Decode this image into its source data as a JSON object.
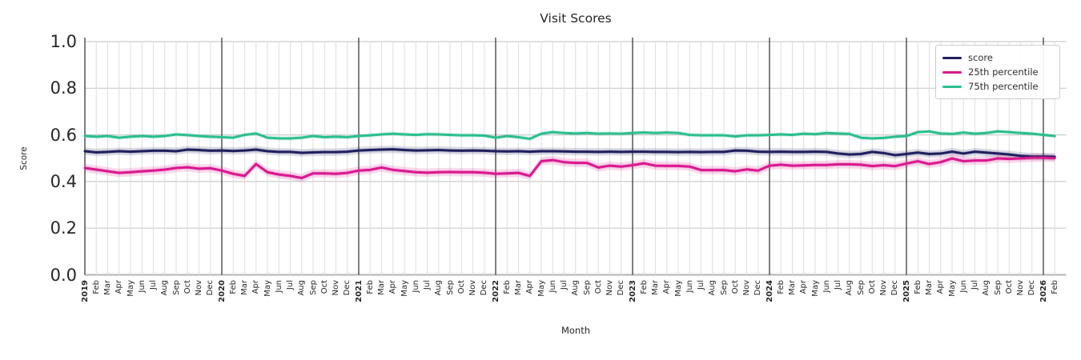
{
  "title": "Visit Scores",
  "legend": {
    "items": [
      {
        "label": "score",
        "color": "#20205e"
      },
      {
        "label": "25th percentile",
        "color": "#d9188f"
      },
      {
        "label": "75th percentile",
        "color": "#2cbe8c"
      }
    ]
  },
  "chart_data": {
    "type": "line",
    "title": "Visit Scores",
    "xlabel": "Month",
    "ylabel": "Score",
    "ylim": [
      0.0,
      1.0
    ],
    "yticks": [
      0.0,
      0.2,
      0.4,
      0.6,
      0.8,
      1.0
    ],
    "grid": true,
    "legend_position": "upper right",
    "x_tick_labels": [
      "2019",
      "Feb",
      "Mar",
      "Apr",
      "May",
      "Jun",
      "Jul",
      "Aug",
      "Sep",
      "Oct",
      "Nov",
      "Dec",
      "2020",
      "Feb",
      "Mar",
      "Apr",
      "May",
      "Jun",
      "Jul",
      "Aug",
      "Sep",
      "Oct",
      "Nov",
      "Dec",
      "2021",
      "Feb",
      "Mar",
      "Apr",
      "May",
      "Jun",
      "Jul",
      "Aug",
      "Sep",
      "Oct",
      "Nov",
      "Dec",
      "2022",
      "Feb",
      "Mar",
      "Apr",
      "May",
      "Jun",
      "Jul",
      "Aug",
      "Sep",
      "Oct",
      "Nov",
      "Dec",
      "2023",
      "Feb",
      "Mar",
      "Apr",
      "May",
      "Jun",
      "Jul",
      "Aug",
      "Sep",
      "Oct",
      "Nov",
      "Dec",
      "2024",
      "Feb",
      "Mar",
      "Apr",
      "May",
      "Jun",
      "Jul",
      "Aug",
      "Sep",
      "Oct",
      "Nov",
      "Dec",
      "2025",
      "Feb",
      "Mar",
      "Apr",
      "May",
      "Jun",
      "Jul",
      "Aug",
      "Sep",
      "Oct",
      "Nov",
      "Dec",
      "2026",
      "Feb"
    ],
    "year_line_indices": [
      0,
      12,
      24,
      36,
      48,
      60,
      72,
      84
    ],
    "series": [
      {
        "name": "score",
        "color": "#20205e",
        "band_halfwidth": 0.016,
        "values": [
          0.53,
          0.525,
          0.527,
          0.53,
          0.528,
          0.53,
          0.532,
          0.532,
          0.53,
          0.537,
          0.535,
          0.532,
          0.533,
          0.531,
          0.533,
          0.537,
          0.53,
          0.527,
          0.527,
          0.523,
          0.525,
          0.526,
          0.526,
          0.528,
          0.533,
          0.535,
          0.537,
          0.538,
          0.535,
          0.533,
          0.534,
          0.535,
          0.533,
          0.532,
          0.533,
          0.532,
          0.53,
          0.529,
          0.53,
          0.528,
          0.53,
          0.53,
          0.529,
          0.528,
          0.528,
          0.527,
          0.528,
          0.527,
          0.528,
          0.528,
          0.527,
          0.527,
          0.526,
          0.527,
          0.526,
          0.527,
          0.527,
          0.533,
          0.532,
          0.528,
          0.527,
          0.528,
          0.527,
          0.527,
          0.528,
          0.527,
          0.52,
          0.516,
          0.518,
          0.527,
          0.522,
          0.513,
          0.518,
          0.524,
          0.518,
          0.52,
          0.528,
          0.52,
          0.528,
          0.524,
          0.52,
          0.516,
          0.51,
          0.507,
          0.507,
          0.506
        ]
      },
      {
        "name": "25th percentile",
        "color": "#d9188f",
        "band_halfwidth": 0.018,
        "values": [
          0.458,
          0.451,
          0.444,
          0.437,
          0.44,
          0.444,
          0.447,
          0.451,
          0.458,
          0.461,
          0.455,
          0.457,
          0.447,
          0.433,
          0.424,
          0.475,
          0.44,
          0.43,
          0.424,
          0.415,
          0.435,
          0.435,
          0.433,
          0.437,
          0.447,
          0.45,
          0.46,
          0.45,
          0.445,
          0.44,
          0.438,
          0.44,
          0.441,
          0.44,
          0.44,
          0.438,
          0.433,
          0.435,
          0.437,
          0.424,
          0.487,
          0.492,
          0.483,
          0.48,
          0.48,
          0.46,
          0.468,
          0.464,
          0.47,
          0.478,
          0.468,
          0.467,
          0.467,
          0.464,
          0.449,
          0.449,
          0.449,
          0.444,
          0.452,
          0.447,
          0.468,
          0.472,
          0.468,
          0.469,
          0.471,
          0.471,
          0.474,
          0.474,
          0.472,
          0.466,
          0.47,
          0.466,
          0.477,
          0.487,
          0.475,
          0.483,
          0.499,
          0.487,
          0.49,
          0.49,
          0.499,
          0.497,
          0.499,
          0.502,
          0.502,
          0.5
        ]
      },
      {
        "name": "75th percentile",
        "color": "#2cbe8c",
        "band_halfwidth": 0.009,
        "values": [
          0.595,
          0.592,
          0.595,
          0.588,
          0.592,
          0.595,
          0.592,
          0.595,
          0.602,
          0.599,
          0.595,
          0.592,
          0.59,
          0.588,
          0.6,
          0.606,
          0.588,
          0.585,
          0.585,
          0.588,
          0.595,
          0.59,
          0.592,
          0.59,
          0.595,
          0.598,
          0.602,
          0.605,
          0.602,
          0.6,
          0.603,
          0.602,
          0.6,
          0.598,
          0.598,
          0.597,
          0.588,
          0.595,
          0.59,
          0.583,
          0.605,
          0.612,
          0.608,
          0.606,
          0.608,
          0.605,
          0.606,
          0.605,
          0.608,
          0.61,
          0.608,
          0.61,
          0.608,
          0.6,
          0.598,
          0.598,
          0.598,
          0.593,
          0.598,
          0.598,
          0.6,
          0.602,
          0.6,
          0.605,
          0.603,
          0.608,
          0.606,
          0.604,
          0.588,
          0.585,
          0.587,
          0.592,
          0.595,
          0.612,
          0.615,
          0.606,
          0.604,
          0.61,
          0.605,
          0.608,
          0.615,
          0.612,
          0.608,
          0.605,
          0.6,
          0.595
        ]
      }
    ]
  }
}
